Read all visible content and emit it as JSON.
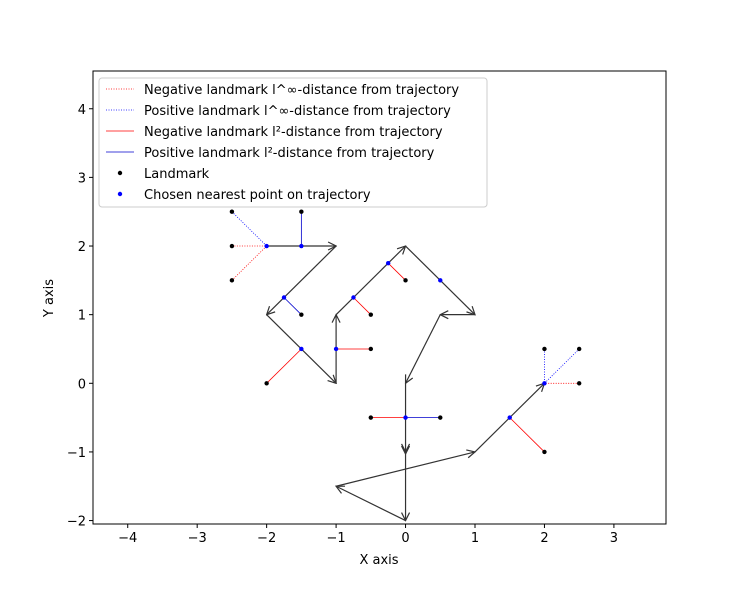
{
  "chart_data": {
    "type": "scatter",
    "title": "",
    "xlabel": "X axis",
    "ylabel": "Y axis",
    "xlim": [
      -4.5,
      3.75
    ],
    "ylim": [
      -2.05,
      4.55
    ],
    "xticks": [
      -4,
      -3,
      -2,
      -1,
      0,
      1,
      2,
      3
    ],
    "yticks": [
      -2,
      -1,
      0,
      1,
      2,
      3,
      4
    ],
    "xtick_labels": [
      "−4",
      "−3",
      "−2",
      "−1",
      "0",
      "1",
      "2",
      "3"
    ],
    "ytick_labels": [
      "−2",
      "−1",
      "0",
      "1",
      "2",
      "3",
      "4"
    ],
    "grid": false,
    "legend_position": "top-left",
    "legend": [
      {
        "label": "Negative landmark l^∞-distance from trajectory",
        "style": "dotted",
        "color": "#ff0000"
      },
      {
        "label": "Positive landmark l^∞-distance from trajectory",
        "style": "dotted",
        "color": "#0000ff"
      },
      {
        "label": "Negative landmark l²-distance from trajectory",
        "style": "solid",
        "color": "#ff0000"
      },
      {
        "label": "Positive landmark l²-distance from trajectory",
        "style": "solid",
        "color": "#0000cc"
      },
      {
        "label": "Landmark",
        "style": "point",
        "color": "#000000"
      },
      {
        "label": "Chosen nearest point on trajectory",
        "style": "point",
        "color": "#0000ff"
      }
    ],
    "trajectory": {
      "color": "#333333",
      "points": [
        [
          0,
          -2
        ],
        [
          -1,
          -1.5
        ],
        [
          1,
          -1
        ],
        [
          2,
          0
        ],
        [
          2,
          0
        ],
        [
          2,
          0
        ]
      ],
      "segments": [
        [
          [
            0,
            -2
          ],
          [
            -1,
            -1.5
          ]
        ],
        [
          [
            -1,
            -1.5
          ],
          [
            1,
            -1
          ]
        ],
        [
          [
            1,
            -1
          ],
          [
            2,
            0
          ]
        ],
        [
          [
            0,
            -2
          ],
          [
            0,
            -1
          ]
        ],
        [
          [
            0,
            -1
          ],
          [
            0,
            0
          ]
        ],
        [
          [
            0,
            0
          ],
          [
            0.5,
            1
          ]
        ],
        [
          [
            0.5,
            1
          ],
          [
            1,
            1
          ]
        ],
        [
          [
            1,
            1
          ],
          [
            0,
            2
          ]
        ],
        [
          [
            0,
            2
          ],
          [
            -1,
            1
          ]
        ],
        [
          [
            -1,
            1
          ],
          [
            -1,
            0
          ]
        ],
        [
          [
            -1,
            0
          ],
          [
            -2,
            1
          ]
        ],
        [
          [
            -2,
            1
          ],
          [
            -1,
            2
          ]
        ],
        [
          [
            -1,
            2
          ],
          [
            -2,
            2
          ]
        ]
      ],
      "arrow_segments": [
        {
          "from": [
            0,
            -2
          ],
          "to": [
            -1,
            -1.5
          ]
        },
        {
          "from": [
            -1,
            -1.5
          ],
          "to": [
            1,
            -1
          ]
        },
        {
          "from": [
            1,
            -1
          ],
          "to": [
            2,
            0
          ]
        },
        {
          "from": [
            0,
            -1.5
          ],
          "to": [
            0,
            -1
          ]
        },
        {
          "from": [
            0,
            -2
          ],
          "to": [
            0,
            -2
          ]
        },
        {
          "from": [
            0.5,
            1
          ],
          "to": [
            0,
            0
          ]
        },
        {
          "from": [
            1,
            1
          ],
          "to": [
            0.5,
            1
          ]
        },
        {
          "from": [
            0,
            2
          ],
          "to": [
            1,
            1
          ]
        },
        {
          "from": [
            -1,
            1
          ],
          "to": [
            0,
            2
          ]
        },
        {
          "from": [
            -1,
            0
          ],
          "to": [
            -1,
            1
          ]
        },
        {
          "from": [
            -2,
            1
          ],
          "to": [
            -1,
            0
          ]
        },
        {
          "from": [
            -1,
            2
          ],
          "to": [
            -2,
            1
          ]
        },
        {
          "from": [
            -2,
            2
          ],
          "to": [
            -1,
            2
          ]
        }
      ]
    },
    "paths": [
      {
        "from": [
          -2,
          2
        ],
        "to": [
          -1,
          2
        ]
      },
      {
        "from": [
          -1,
          2
        ],
        "to": [
          -2,
          1
        ]
      },
      {
        "from": [
          -2,
          1
        ],
        "to": [
          -1,
          0
        ]
      },
      {
        "from": [
          -1,
          0
        ],
        "to": [
          -1,
          1
        ]
      },
      {
        "from": [
          -1,
          1
        ],
        "to": [
          0,
          2
        ]
      },
      {
        "from": [
          0,
          2
        ],
        "to": [
          1,
          1
        ]
      },
      {
        "from": [
          1,
          1
        ],
        "to": [
          0.5,
          1
        ]
      },
      {
        "from": [
          0.5,
          1
        ],
        "to": [
          0,
          0
        ]
      },
      {
        "from": [
          0,
          0
        ],
        "to": [
          0,
          -1
        ]
      },
      {
        "from": [
          0,
          -1
        ],
        "to": [
          0,
          -2
        ]
      },
      {
        "from": [
          0,
          -2
        ],
        "to": [
          -1,
          -1.5
        ]
      },
      {
        "from": [
          -1,
          -1.5
        ],
        "to": [
          1,
          -1
        ]
      },
      {
        "from": [
          1,
          -1
        ],
        "to": [
          2,
          0
        ]
      }
    ],
    "landmarks": [
      [
        -2.5,
        2.5
      ],
      [
        -1.5,
        2.5
      ],
      [
        -2.5,
        2
      ],
      [
        -2.5,
        1.5
      ],
      [
        -1.5,
        1
      ],
      [
        -2,
        0
      ],
      [
        -0.5,
        1
      ],
      [
        0,
        1.5
      ],
      [
        -0.5,
        0.5
      ],
      [
        -0.5,
        -0.5
      ],
      [
        0.5,
        -0.5
      ],
      [
        2,
        0.5
      ],
      [
        2.5,
        0.5
      ],
      [
        2.5,
        0
      ],
      [
        2,
        -1
      ]
    ],
    "nearest_points": [
      [
        -2,
        2
      ],
      [
        -1.5,
        2
      ],
      [
        -1.75,
        1.25
      ],
      [
        -1.5,
        0.5
      ],
      [
        -0.75,
        1.25
      ],
      [
        -0.25,
        1.75
      ],
      [
        0.5,
        1.5
      ],
      [
        -1,
        0.5
      ],
      [
        0,
        -0.5
      ],
      [
        1.5,
        -0.5
      ],
      [
        2,
        0
      ]
    ],
    "connectors": [
      {
        "from": [
          -2.5,
          2.5
        ],
        "to": [
          -2,
          2
        ],
        "type": "pos-linf"
      },
      {
        "from": [
          -2.5,
          2
        ],
        "to": [
          -2,
          2
        ],
        "type": "neg-linf"
      },
      {
        "from": [
          -2.5,
          1.5
        ],
        "to": [
          -2,
          2
        ],
        "type": "neg-linf"
      },
      {
        "from": [
          -1.5,
          2.5
        ],
        "to": [
          -1.5,
          2
        ],
        "type": "pos-l2"
      },
      {
        "from": [
          -1.5,
          1
        ],
        "to": [
          -1.75,
          1.25
        ],
        "type": "pos-l2"
      },
      {
        "from": [
          -2,
          0
        ],
        "to": [
          -1.5,
          0.5
        ],
        "type": "neg-l2"
      },
      {
        "from": [
          -0.5,
          1
        ],
        "to": [
          -0.75,
          1.25
        ],
        "type": "neg-l2"
      },
      {
        "from": [
          0,
          1.5
        ],
        "to": [
          -0.25,
          1.75
        ],
        "type": "neg-l2"
      },
      {
        "from": [
          -0.5,
          0.5
        ],
        "to": [
          -1,
          0.5
        ],
        "type": "neg-l2"
      },
      {
        "from": [
          -0.5,
          -0.5
        ],
        "to": [
          0,
          -0.5
        ],
        "type": "neg-l2"
      },
      {
        "from": [
          0.5,
          -0.5
        ],
        "to": [
          0,
          -0.5
        ],
        "type": "pos-l2"
      },
      {
        "from": [
          2,
          -1
        ],
        "to": [
          1.5,
          -0.5
        ],
        "type": "neg-l2"
      },
      {
        "from": [
          2,
          0.5
        ],
        "to": [
          2,
          0
        ],
        "type": "pos-linf"
      },
      {
        "from": [
          2.5,
          0.5
        ],
        "to": [
          2,
          0
        ],
        "type": "pos-linf"
      },
      {
        "from": [
          2.5,
          0
        ],
        "to": [
          2,
          0
        ],
        "type": "neg-linf"
      }
    ]
  }
}
